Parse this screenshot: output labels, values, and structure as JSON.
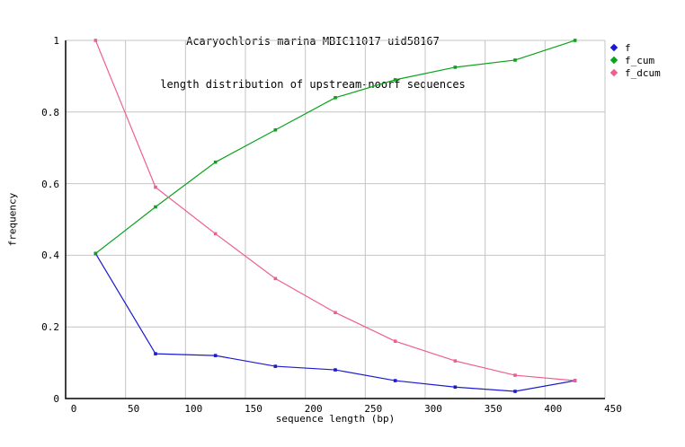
{
  "title_line1": "Acaryochloris marina MBIC11017 uid58167",
  "title_line2": "length distribution of upstream-noorf sequences",
  "chart_data": {
    "type": "line",
    "title": "Acaryochloris marina MBIC11017 uid58167 — length distribution of upstream-noorf sequences",
    "xlabel": "sequence length (bp)",
    "ylabel": "frequency",
    "xlim": [
      0,
      450
    ],
    "ylim": [
      0,
      1
    ],
    "x_ticks": [
      0,
      50,
      100,
      150,
      200,
      250,
      300,
      350,
      400,
      450
    ],
    "y_ticks": [
      "0",
      "0.2",
      "0.4",
      "0.6",
      "0.8",
      "1"
    ],
    "grid": true,
    "legend_position": "outside-top-right",
    "x": [
      25,
      75,
      125,
      175,
      225,
      275,
      325,
      375,
      425
    ],
    "series": [
      {
        "name": "f",
        "color": "#1a1ad1",
        "values": [
          0.405,
          0.125,
          0.12,
          0.09,
          0.08,
          0.05,
          0.032,
          0.02,
          0.05
        ]
      },
      {
        "name": "f_cum",
        "color": "#09a31c",
        "values": [
          0.405,
          0.535,
          0.66,
          0.75,
          0.84,
          0.89,
          0.925,
          0.945,
          1.0
        ]
      },
      {
        "name": "f_dcum",
        "color": "#ee5f90",
        "values": [
          1.0,
          0.59,
          0.46,
          0.335,
          0.24,
          0.16,
          0.105,
          0.065,
          0.05
        ]
      }
    ]
  },
  "colors": {
    "grid": "#c4c4c4",
    "axis": "#000000",
    "background": "#ffffff"
  }
}
